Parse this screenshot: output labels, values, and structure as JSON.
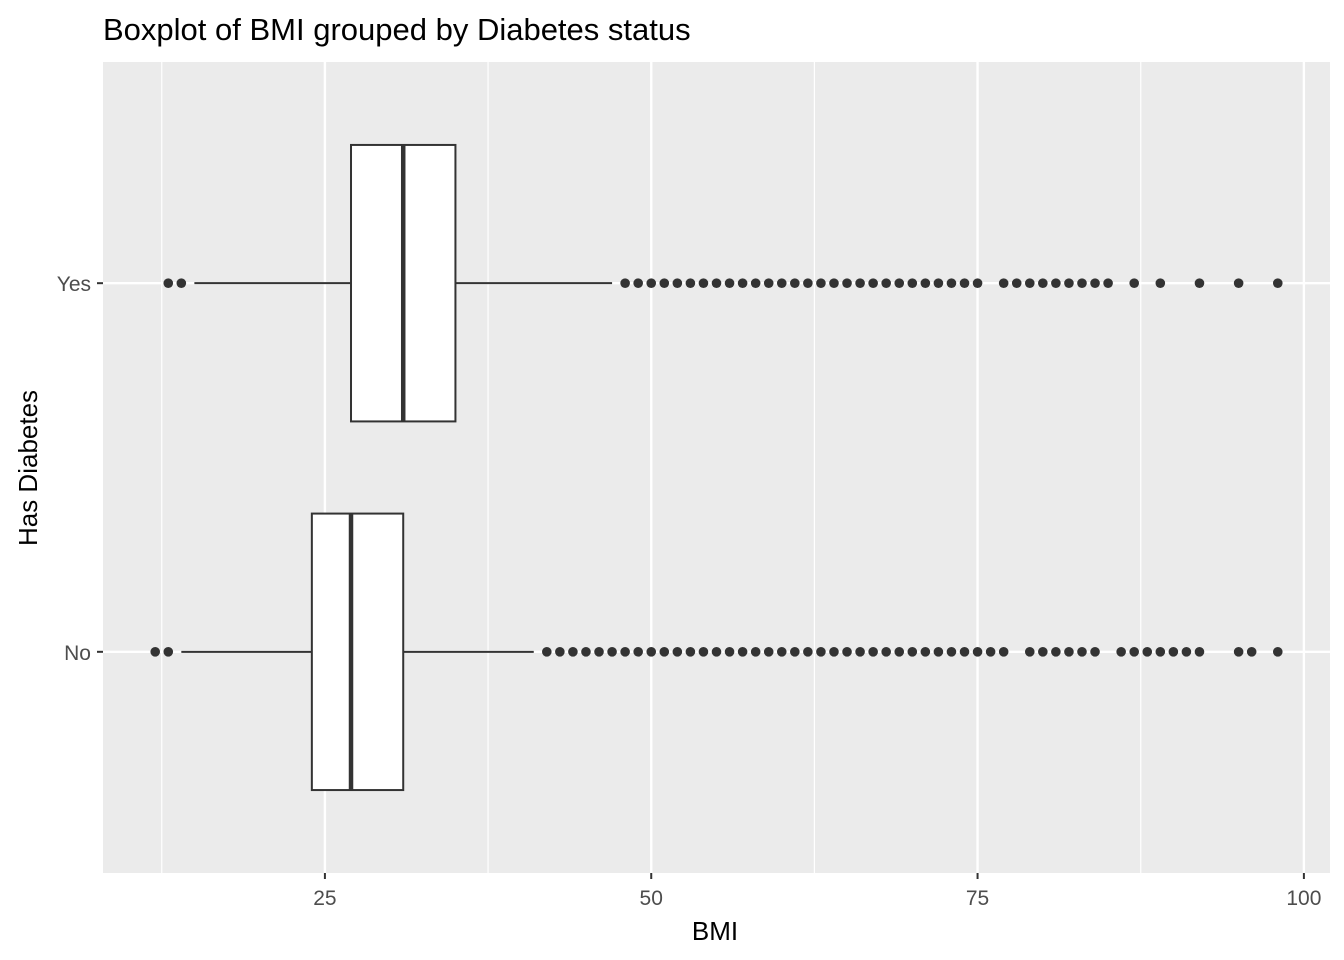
{
  "chart_data": {
    "type": "boxplot",
    "orientation": "horizontal",
    "title": "Boxplot of BMI grouped by Diabetes status",
    "xlabel": "BMI",
    "ylabel": "Has Diabetes",
    "xlim": [
      8,
      102
    ],
    "x_ticks": [
      25,
      50,
      75,
      100
    ],
    "categories": [
      "No",
      "Yes"
    ],
    "grid": true,
    "legend": "none",
    "colors": {
      "panel_background": "#ebebeb",
      "grid_line": "#ffffff",
      "box_fill": "#ffffff",
      "box_stroke": "#333333",
      "outlier": "#333333"
    },
    "boxes": [
      {
        "category": "No",
        "whisker_low": 14,
        "q1": 24,
        "median": 27,
        "q3": 31,
        "whisker_high": 41,
        "outliers": [
          12,
          13,
          42,
          43,
          44,
          45,
          46,
          47,
          48,
          49,
          50,
          51,
          52,
          53,
          54,
          55,
          56,
          57,
          58,
          59,
          60,
          61,
          62,
          63,
          64,
          65,
          66,
          67,
          68,
          69,
          70,
          71,
          72,
          73,
          74,
          75,
          76,
          77,
          79,
          80,
          81,
          82,
          83,
          84,
          86,
          87,
          88,
          89,
          90,
          91,
          92,
          95,
          96,
          98
        ]
      },
      {
        "category": "Yes",
        "whisker_low": 15,
        "q1": 27,
        "median": 31,
        "q3": 35,
        "whisker_high": 47,
        "outliers": [
          13,
          14,
          48,
          49,
          50,
          51,
          52,
          53,
          54,
          55,
          56,
          57,
          58,
          59,
          60,
          61,
          62,
          63,
          64,
          65,
          66,
          67,
          68,
          69,
          70,
          71,
          72,
          73,
          74,
          75,
          77,
          78,
          79,
          80,
          81,
          82,
          83,
          84,
          85,
          87,
          89,
          92,
          95,
          98
        ]
      }
    ]
  }
}
